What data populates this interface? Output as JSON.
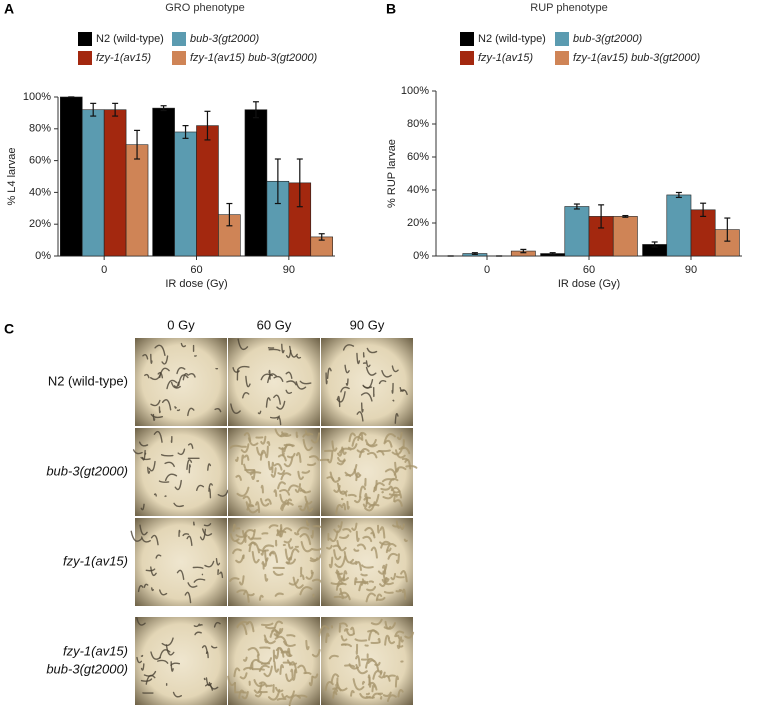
{
  "panels": [
    "A",
    "B",
    "C"
  ],
  "chart_data": [
    {
      "type": "bar",
      "title": "GRO phenotype",
      "y_label": "% L4 larvae",
      "x_label": "IR dose (Gy)",
      "categories": [
        "0",
        "60",
        "90"
      ],
      "series": [
        {
          "name": "N2 (wild-type)",
          "color": "#000000",
          "values": [
            100,
            93,
            92
          ],
          "errors": [
            0,
            1.5,
            5
          ]
        },
        {
          "name": "bub-3(gt2000)",
          "color": "#5b9bb0",
          "values": [
            92,
            78,
            47
          ],
          "errors": [
            4,
            4,
            14
          ]
        },
        {
          "name": "fzy-1(av15)",
          "color": "#a3280f",
          "values": [
            92,
            82,
            46
          ],
          "errors": [
            4,
            9,
            15
          ]
        },
        {
          "name": "fzy-1(av15) bub-3(gt2000)",
          "color": "#cf8456",
          "values": [
            70,
            26,
            12
          ],
          "errors": [
            9,
            7,
            2
          ]
        }
      ],
      "ylim": [
        0,
        100
      ],
      "yticks": [
        {
          "value": 0,
          "label": "0%"
        },
        {
          "value": 20,
          "label": "20%"
        },
        {
          "value": 40,
          "label": "40%"
        },
        {
          "value": 60,
          "label": "60%"
        },
        {
          "value": 80,
          "label": "80%"
        },
        {
          "value": 100,
          "label": "100%"
        }
      ]
    },
    {
      "type": "bar",
      "title": "RUP phenotype",
      "y_label": "% RUP larvae",
      "x_label": "IR dose (Gy)",
      "categories": [
        "0",
        "60",
        "90"
      ],
      "series": [
        {
          "name": "N2 (wild-type)",
          "color": "#000000",
          "values": [
            0,
            1.5,
            7
          ],
          "errors": [
            0,
            0.5,
            1.5
          ]
        },
        {
          "name": "bub-3(gt2000)",
          "color": "#5b9bb0",
          "values": [
            1.5,
            30,
            37
          ],
          "errors": [
            0.5,
            1.5,
            1.5
          ]
        },
        {
          "name": "fzy-1(av15)",
          "color": "#a3280f",
          "values": [
            0,
            24,
            28
          ],
          "errors": [
            0,
            7,
            4
          ]
        },
        {
          "name": "fzy-1(av15) bub-3(gt2000)",
          "color": "#cf8456",
          "values": [
            3,
            24,
            16
          ],
          "errors": [
            1,
            0.5,
            7
          ]
        }
      ],
      "ylim": [
        0,
        100
      ],
      "yticks": [
        {
          "value": 0,
          "label": "0%"
        },
        {
          "value": 20,
          "label": "20%"
        },
        {
          "value": 40,
          "label": "40%"
        },
        {
          "value": 60,
          "label": "60%"
        },
        {
          "value": 80,
          "label": "80%"
        },
        {
          "value": 100,
          "label": "100%"
        }
      ]
    }
  ],
  "micrographs": {
    "columns": [
      "0 Gy",
      "60 Gy",
      "90 Gy"
    ],
    "rows": [
      [
        "N2 (wild-type)"
      ],
      [
        "bub-3(gt2000)"
      ],
      [
        "fzy-1(av15)"
      ],
      [
        "fzy-1(av15)",
        "bub-3(gt2000)"
      ]
    ]
  }
}
